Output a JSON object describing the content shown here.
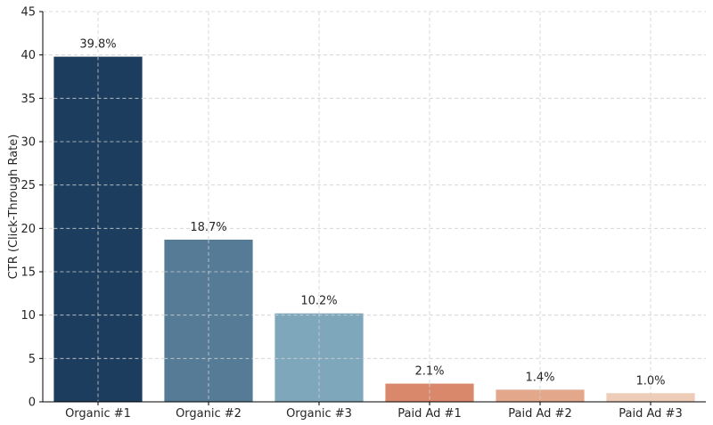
{
  "chart_data": {
    "type": "bar",
    "title": "",
    "xlabel": "",
    "ylabel": "CTR (Click-Through Rate)",
    "ylim": [
      0,
      45
    ],
    "yticks": [
      0,
      5,
      10,
      15,
      20,
      25,
      30,
      35,
      40,
      45
    ],
    "grid": true,
    "categories": [
      "Organic #1",
      "Organic #2",
      "Organic #3",
      "Paid Ad #1",
      "Paid Ad #2",
      "Paid Ad #3"
    ],
    "values": [
      39.8,
      18.7,
      10.2,
      2.1,
      1.4,
      1.0
    ],
    "data_labels": [
      "39.8%",
      "18.7%",
      "10.2%",
      "2.1%",
      "1.4%",
      "1.0%"
    ],
    "colors": [
      "#1c3d5e",
      "#557b96",
      "#7fa7bb",
      "#d9886c",
      "#e3a88b",
      "#edcdb8"
    ]
  }
}
